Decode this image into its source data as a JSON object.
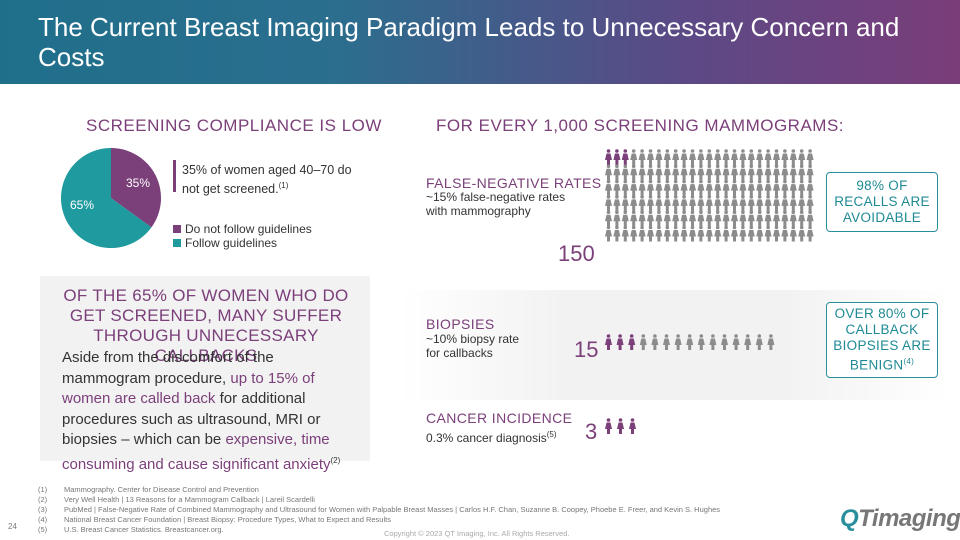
{
  "title": "The Current Breast Imaging Paradigm Leads to Unnecessary Concern and Costs",
  "left": {
    "heading": "Screening Compliance is Low",
    "compliance_text": "35% of women aged 40–70 do not get screened.",
    "compliance_fn": "(1)",
    "pie": {
      "slices": [
        {
          "label": "Do not follow guidelines",
          "value": 35,
          "display": "35%",
          "color": "#7b3f7a"
        },
        {
          "label": "Follow guidelines",
          "value": 65,
          "display": "65%",
          "color": "#1f9a9e"
        }
      ]
    },
    "sub_heading": "Of the 65% of women who do get screened, many suffer through unnecessary callbacks",
    "para_part1": "Aside from the discomfort of the mammogram procedure, ",
    "para_hl1": "up to 15% of women are called back",
    "para_part2": " for additional procedures such as ultrasound, MRI or biopsies – which can be ",
    "para_hl2": "expensive, time consuming and cause significant anxiety",
    "para_fn": "(2)"
  },
  "right": {
    "heading": "For every 1,000 screening mammograms:",
    "false_neg": {
      "title": "False-negative rates",
      "desc": "~15% false-negative rates with mammography",
      "number": "150",
      "callout": "98% of recalls are avoidable",
      "highlighted_count": 3,
      "total_icons": 150
    },
    "biopsies": {
      "title": "Biopsies",
      "desc": "~10% biopsy rate for callbacks",
      "number": "15",
      "callout": "Over 80% of callback biopsies are benign",
      "callout_fn": "(4)",
      "highlighted_count": 3,
      "total_icons": 15
    },
    "cancer": {
      "title": "Cancer Incidence",
      "desc": "0.3% cancer diagnosis",
      "desc_fn": "(5)",
      "number": "3",
      "highlighted_count": 3,
      "total_icons": 3
    }
  },
  "footnotes": [
    {
      "num": "(1)",
      "text": "Mammography. Center for Disease Control and Prevention"
    },
    {
      "num": "(2)",
      "text": "Very Well Health | 13 Reasons for a Mammogram Callback | Lareil Scardelli"
    },
    {
      "num": "(3)",
      "text": "PubMed | False-Negative Rate of Combined Mammography and Ultrasound for Women with Palpable Breast Masses | Carlos H.F. Chan, Suzanne B. Coopey, Phoebe E. Freer, and Kevin S. Hughes"
    },
    {
      "num": "(4)",
      "text": "National Breast Cancer Foundation | Breast Biopsy: Procedure Types, What to Expect and Results"
    },
    {
      "num": "(5)",
      "text": "U.S. Breast Cancer Statistics. Breastcancer.org."
    }
  ],
  "page_number": "24",
  "copyright": "Copyright © 2023 QT Imaging, Inc. All Rights Reserved.",
  "logo": {
    "q": "Q",
    "rest": "Timaging"
  },
  "colors": {
    "accent": "#7b3f7a",
    "teal": "#1f9a9e",
    "icon_gray": "#8c8c8c"
  }
}
